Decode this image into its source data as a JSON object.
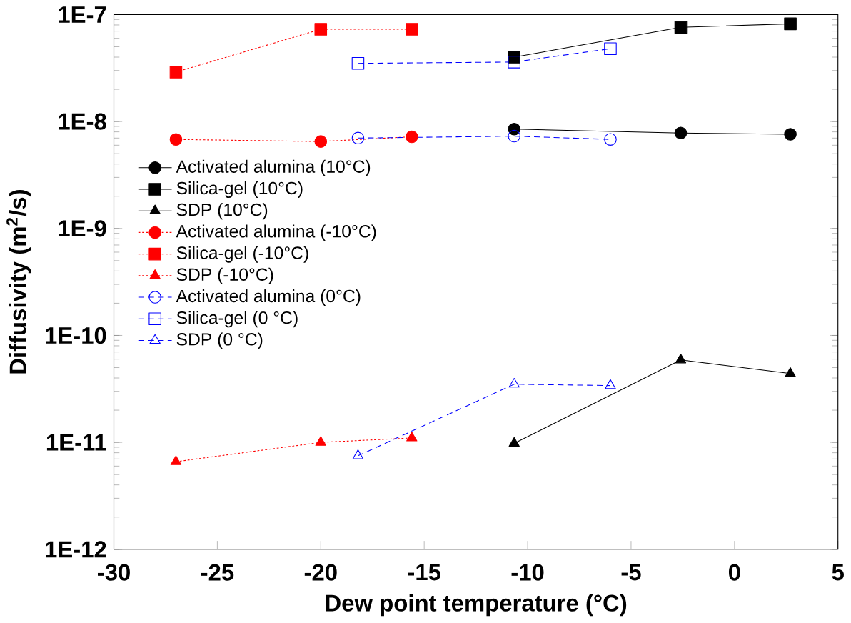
{
  "chart_data": {
    "type": "line",
    "xlabel": "Dew point temperature (°C)",
    "ylabel": "Diffusivity (m$^{2}$/s)",
    "log": "y",
    "xlim": [
      -30,
      5
    ],
    "xticks": [
      -30,
      -25,
      -20,
      -15,
      -10,
      -5,
      0,
      5
    ],
    "ylim": [
      1e-12,
      1e-07
    ],
    "yticks": [
      {
        "value": 1e-12,
        "label": "1E-12"
      },
      {
        "value": 1e-11,
        "label": "1E-11"
      },
      {
        "value": 1e-10,
        "label": "1E-10"
      },
      {
        "value": 1e-09,
        "label": "1E-9"
      },
      {
        "value": 1e-08,
        "label": "1E-8"
      },
      {
        "value": 1e-07,
        "label": "1E-7"
      }
    ],
    "grid": false,
    "legend": "left",
    "series": [
      {
        "name": "Activated alumina (10°C)",
        "color": "#000000",
        "marker": "circle",
        "line_style": "solid",
        "x": [
          -10.65,
          -2.6,
          2.7
        ],
        "values": [
          8.5e-09,
          7.8e-09,
          7.6e-09
        ]
      },
      {
        "name": "Silica-gel (10°C)",
        "color": "#000000",
        "marker": "square",
        "line_style": "solid",
        "x": [
          -10.65,
          -2.6,
          2.7
        ],
        "values": [
          4e-08,
          7.6e-08,
          8.2e-08
        ]
      },
      {
        "name": "SDP (10°C)",
        "color": "#000000",
        "marker": "triangle",
        "line_style": "solid",
        "x": [
          -10.65,
          -2.6,
          2.7
        ],
        "values": [
          9.8e-12,
          5.9e-11,
          4.4e-11
        ]
      },
      {
        "name": "Activated alumina (-10°C)",
        "color": "#ff0000",
        "marker": "circle",
        "line_style": "dotted",
        "x": [
          -27,
          -20,
          -15.6
        ],
        "values": [
          6.8e-09,
          6.5e-09,
          7.2e-09
        ]
      },
      {
        "name": "Silica-gel (-10°C)",
        "color": "#ff0000",
        "marker": "square",
        "line_style": "dotted",
        "x": [
          -27,
          -20,
          -15.6
        ],
        "values": [
          2.9e-08,
          7.3e-08,
          7.3e-08
        ]
      },
      {
        "name": "SDP (-10°C)",
        "color": "#ff0000",
        "marker": "triangle",
        "line_style": "dotted",
        "x": [
          -27,
          -20,
          -15.6
        ],
        "values": [
          6.6e-12,
          1e-11,
          1.1e-11
        ]
      },
      {
        "name": "Activated alumina (0°C)",
        "color": "#0000ff",
        "marker": "circle",
        "line_style": "dashed",
        "x": [
          -18.2,
          -10.65,
          -6.0
        ],
        "values": [
          7e-09,
          7.3e-09,
          6.8e-09
        ]
      },
      {
        "name": "Silica-gel (0 °C)",
        "color": "#0000ff",
        "marker": "square",
        "line_style": "dashed",
        "x": [
          -18.2,
          -10.65,
          -6.0
        ],
        "values": [
          3.5e-08,
          3.6e-08,
          4.8e-08
        ]
      },
      {
        "name": "SDP (0 °C)",
        "color": "#0000ff",
        "marker": "triangle",
        "line_style": "dashed",
        "x": [
          -18.2,
          -10.65,
          -6.0
        ],
        "values": [
          7.5e-12,
          3.5e-11,
          3.4e-11
        ]
      }
    ]
  }
}
